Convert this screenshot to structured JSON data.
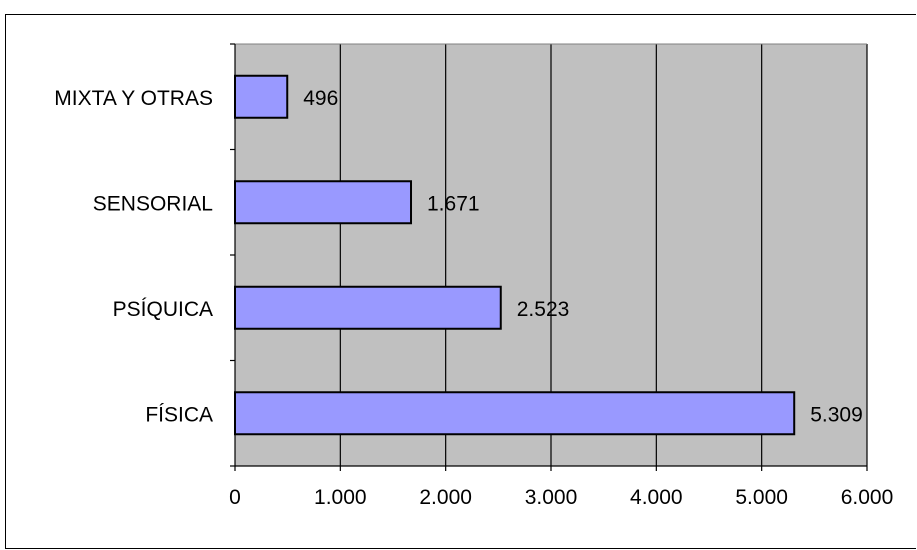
{
  "chart_data": {
    "type": "bar",
    "orientation": "horizontal",
    "categories": [
      "FÍSICA",
      "PSÍQUICA",
      "SENSORIAL",
      "MIXTA Y OTRAS"
    ],
    "values": [
      5309,
      2523,
      1671,
      496
    ],
    "value_labels": [
      "5.309",
      "2.523",
      "1.671",
      "496"
    ],
    "xlim": [
      0,
      6000
    ],
    "x_ticks": [
      0,
      1000,
      2000,
      3000,
      4000,
      5000,
      6000
    ],
    "x_tick_labels": [
      "0",
      "1.000",
      "2.000",
      "3.000",
      "4.000",
      "5.000",
      "6.000"
    ],
    "grid": "vertical major gridlines",
    "legend": "none",
    "title": "",
    "xlabel": "",
    "ylabel": "",
    "colors": {
      "bar_fill": "#9999ff",
      "bar_stroke": "#000000",
      "plot_background": "#c0c0c0",
      "gridline": "#000000"
    }
  }
}
